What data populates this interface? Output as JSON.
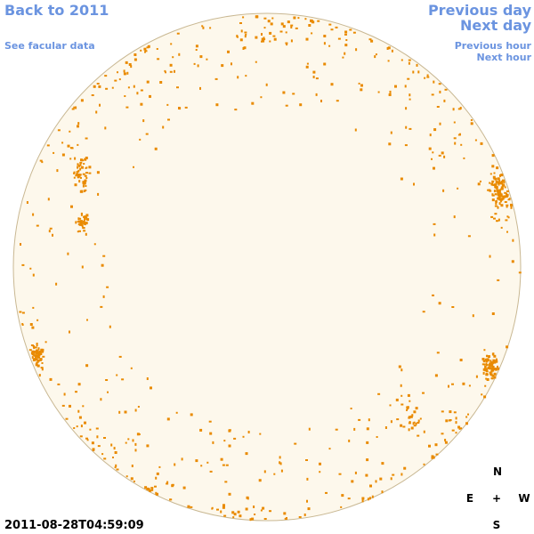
{
  "nav": {
    "back_link": "Back to 2011",
    "facular_link": "See facular data",
    "previous_day": "Previous day",
    "next_day": "Next day",
    "previous_hour": "Previous hour",
    "next_hour": "Next hour"
  },
  "timestamp": "2011-08-28T04:59:09",
  "compass": {
    "north": "N",
    "east": "E",
    "center": "+",
    "west": "W",
    "south": "S"
  }
}
